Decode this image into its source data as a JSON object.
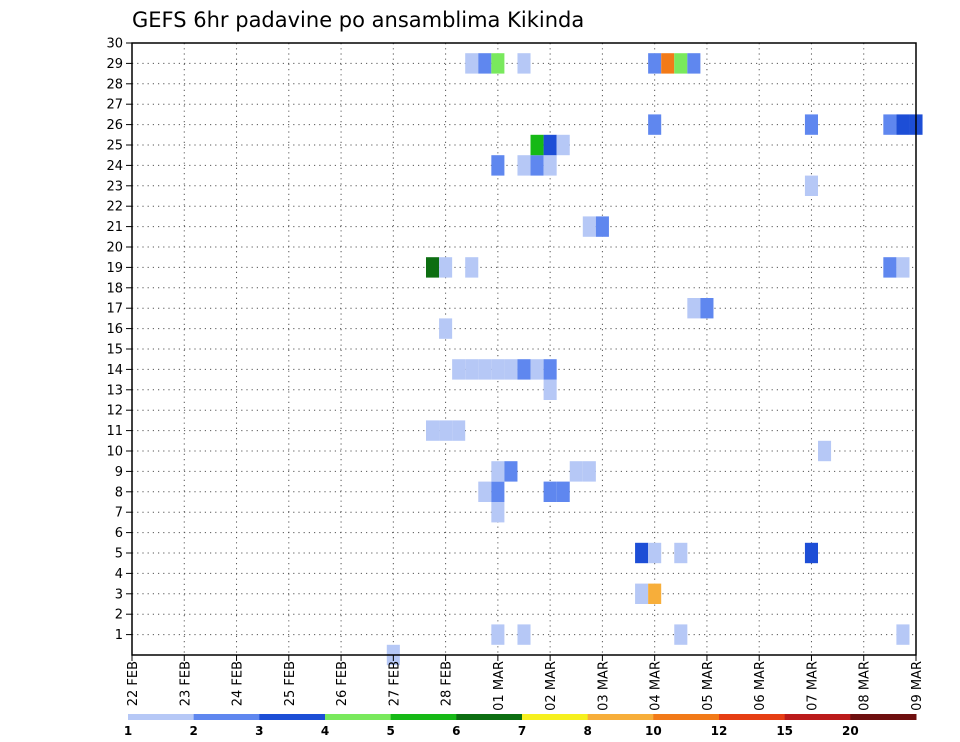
{
  "chart_data": {
    "type": "heatmap",
    "title": "GEFS 6hr padavine po ansamblima Kikinda",
    "xlabel": "",
    "ylabel": "",
    "x_ticks": [
      "22 FEB",
      "23 FEB",
      "24 FEB",
      "25 FEB",
      "26 FEB",
      "27 FEB",
      "28 FEB",
      "01 MAR",
      "02 MAR",
      "03 MAR",
      "04 MAR",
      "05 MAR",
      "06 MAR",
      "07 MAR",
      "08 MAR",
      "09 MAR"
    ],
    "y_ticks": [
      1,
      2,
      3,
      4,
      5,
      6,
      7,
      8,
      9,
      10,
      11,
      12,
      13,
      14,
      15,
      16,
      17,
      18,
      19,
      20,
      21,
      22,
      23,
      24,
      25,
      26,
      27,
      28,
      29,
      30
    ],
    "ylim": [
      0,
      30
    ],
    "time_step_hours": 6,
    "grid": true,
    "levels": [
      {
        "min": 1,
        "max": 2,
        "color": "#b6c8f6"
      },
      {
        "min": 2,
        "max": 3,
        "color": "#5f87ef"
      },
      {
        "min": 3,
        "max": 4,
        "color": "#1d4ed6"
      },
      {
        "min": 4,
        "max": 5,
        "color": "#79e95d"
      },
      {
        "min": 5,
        "max": 6,
        "color": "#16b916"
      },
      {
        "min": 6,
        "max": 7,
        "color": "#0d6e12"
      },
      {
        "min": 7,
        "max": 8,
        "color": "#f6f01e"
      },
      {
        "min": 8,
        "max": 10,
        "color": "#f7ae3a"
      },
      {
        "min": 10,
        "max": 12,
        "color": "#f27a18"
      },
      {
        "min": 12,
        "max": 15,
        "color": "#e63e14"
      },
      {
        "min": 15,
        "max": 20,
        "color": "#bb1a1a"
      },
      {
        "min": 20,
        "max": null,
        "color": "#6e0f0f"
      }
    ],
    "legend": {
      "position": "bottom",
      "labels": [
        "1",
        "2",
        "3",
        "4",
        "5",
        "6",
        "7",
        "8",
        "10",
        "12",
        "15",
        "20"
      ]
    },
    "cells": [
      {
        "time": "27 FEB 00Z",
        "member": 0,
        "level": 1
      },
      {
        "time": "01 MAR 00Z",
        "member": 1,
        "level": 1
      },
      {
        "time": "01 MAR 12Z",
        "member": 1,
        "level": 1
      },
      {
        "time": "04 MAR 12Z",
        "member": 1,
        "level": 1
      },
      {
        "time": "08 MAR 18Z",
        "member": 1,
        "level": 1
      },
      {
        "time": "03 MAR 18Z",
        "member": 3,
        "level": 1
      },
      {
        "time": "04 MAR 00Z",
        "member": 3,
        "level": 8
      },
      {
        "time": "03 MAR 18Z",
        "member": 5,
        "level": 3
      },
      {
        "time": "04 MAR 00Z",
        "member": 5,
        "level": 1
      },
      {
        "time": "04 MAR 12Z",
        "member": 5,
        "level": 1
      },
      {
        "time": "07 MAR 00Z",
        "member": 5,
        "level": 3
      },
      {
        "time": "01 MAR 00Z",
        "member": 7,
        "level": 1
      },
      {
        "time": "28 FEB 18Z",
        "member": 8,
        "level": 1
      },
      {
        "time": "01 MAR 00Z",
        "member": 8,
        "level": 2
      },
      {
        "time": "02 MAR 00Z",
        "member": 8,
        "level": 2
      },
      {
        "time": "02 MAR 06Z",
        "member": 8,
        "level": 2
      },
      {
        "time": "01 MAR 00Z",
        "member": 9,
        "level": 1
      },
      {
        "time": "01 MAR 06Z",
        "member": 9,
        "level": 2
      },
      {
        "time": "02 MAR 12Z",
        "member": 9,
        "level": 1
      },
      {
        "time": "02 MAR 18Z",
        "member": 9,
        "level": 1
      },
      {
        "time": "07 MAR 06Z",
        "member": 10,
        "level": 1
      },
      {
        "time": "27 FEB 18Z",
        "member": 11,
        "level": 1
      },
      {
        "time": "28 FEB 00Z",
        "member": 11,
        "level": 1
      },
      {
        "time": "28 FEB 06Z",
        "member": 11,
        "level": 1
      },
      {
        "time": "02 MAR 00Z",
        "member": 13,
        "level": 1
      },
      {
        "time": "28 FEB 06Z",
        "member": 14,
        "level": 1
      },
      {
        "time": "28 FEB 12Z",
        "member": 14,
        "level": 1
      },
      {
        "time": "28 FEB 18Z",
        "member": 14,
        "level": 1
      },
      {
        "time": "01 MAR 00Z",
        "member": 14,
        "level": 1
      },
      {
        "time": "01 MAR 06Z",
        "member": 14,
        "level": 1
      },
      {
        "time": "01 MAR 12Z",
        "member": 14,
        "level": 2
      },
      {
        "time": "01 MAR 18Z",
        "member": 14,
        "level": 1
      },
      {
        "time": "02 MAR 00Z",
        "member": 14,
        "level": 2
      },
      {
        "time": "28 FEB 00Z",
        "member": 16,
        "level": 1
      },
      {
        "time": "04 MAR 18Z",
        "member": 17,
        "level": 1
      },
      {
        "time": "05 MAR 00Z",
        "member": 17,
        "level": 2
      },
      {
        "time": "27 FEB 18Z",
        "member": 19,
        "level": 6
      },
      {
        "time": "28 FEB 00Z",
        "member": 19,
        "level": 1
      },
      {
        "time": "28 FEB 12Z",
        "member": 19,
        "level": 1
      },
      {
        "time": "08 MAR 12Z",
        "member": 19,
        "level": 2
      },
      {
        "time": "08 MAR 18Z",
        "member": 19,
        "level": 1
      },
      {
        "time": "02 MAR 18Z",
        "member": 21,
        "level": 1
      },
      {
        "time": "03 MAR 00Z",
        "member": 21,
        "level": 2
      },
      {
        "time": "07 MAR 00Z",
        "member": 23,
        "level": 1
      },
      {
        "time": "01 MAR 00Z",
        "member": 24,
        "level": 2
      },
      {
        "time": "01 MAR 12Z",
        "member": 24,
        "level": 1
      },
      {
        "time": "01 MAR 18Z",
        "member": 24,
        "level": 2
      },
      {
        "time": "02 MAR 00Z",
        "member": 24,
        "level": 1
      },
      {
        "time": "01 MAR 18Z",
        "member": 25,
        "level": 5
      },
      {
        "time": "02 MAR 00Z",
        "member": 25,
        "level": 3
      },
      {
        "time": "02 MAR 06Z",
        "member": 25,
        "level": 1
      },
      {
        "time": "04 MAR 00Z",
        "member": 26,
        "level": 2
      },
      {
        "time": "07 MAR 00Z",
        "member": 26,
        "level": 2
      },
      {
        "time": "08 MAR 12Z",
        "member": 26,
        "level": 2
      },
      {
        "time": "08 MAR 18Z",
        "member": 26,
        "level": 3
      },
      {
        "time": "09 MAR 00Z",
        "member": 26,
        "level": 3
      },
      {
        "time": "28 FEB 12Z",
        "member": 29,
        "level": 1
      },
      {
        "time": "28 FEB 18Z",
        "member": 29,
        "level": 2
      },
      {
        "time": "01 MAR 00Z",
        "member": 29,
        "level": 4
      },
      {
        "time": "01 MAR 12Z",
        "member": 29,
        "level": 1
      },
      {
        "time": "04 MAR 00Z",
        "member": 29,
        "level": 2
      },
      {
        "time": "04 MAR 06Z",
        "member": 29,
        "level": 9
      },
      {
        "time": "04 MAR 12Z",
        "member": 29,
        "level": 4
      },
      {
        "time": "04 MAR 18Z",
        "member": 29,
        "level": 2
      }
    ]
  }
}
